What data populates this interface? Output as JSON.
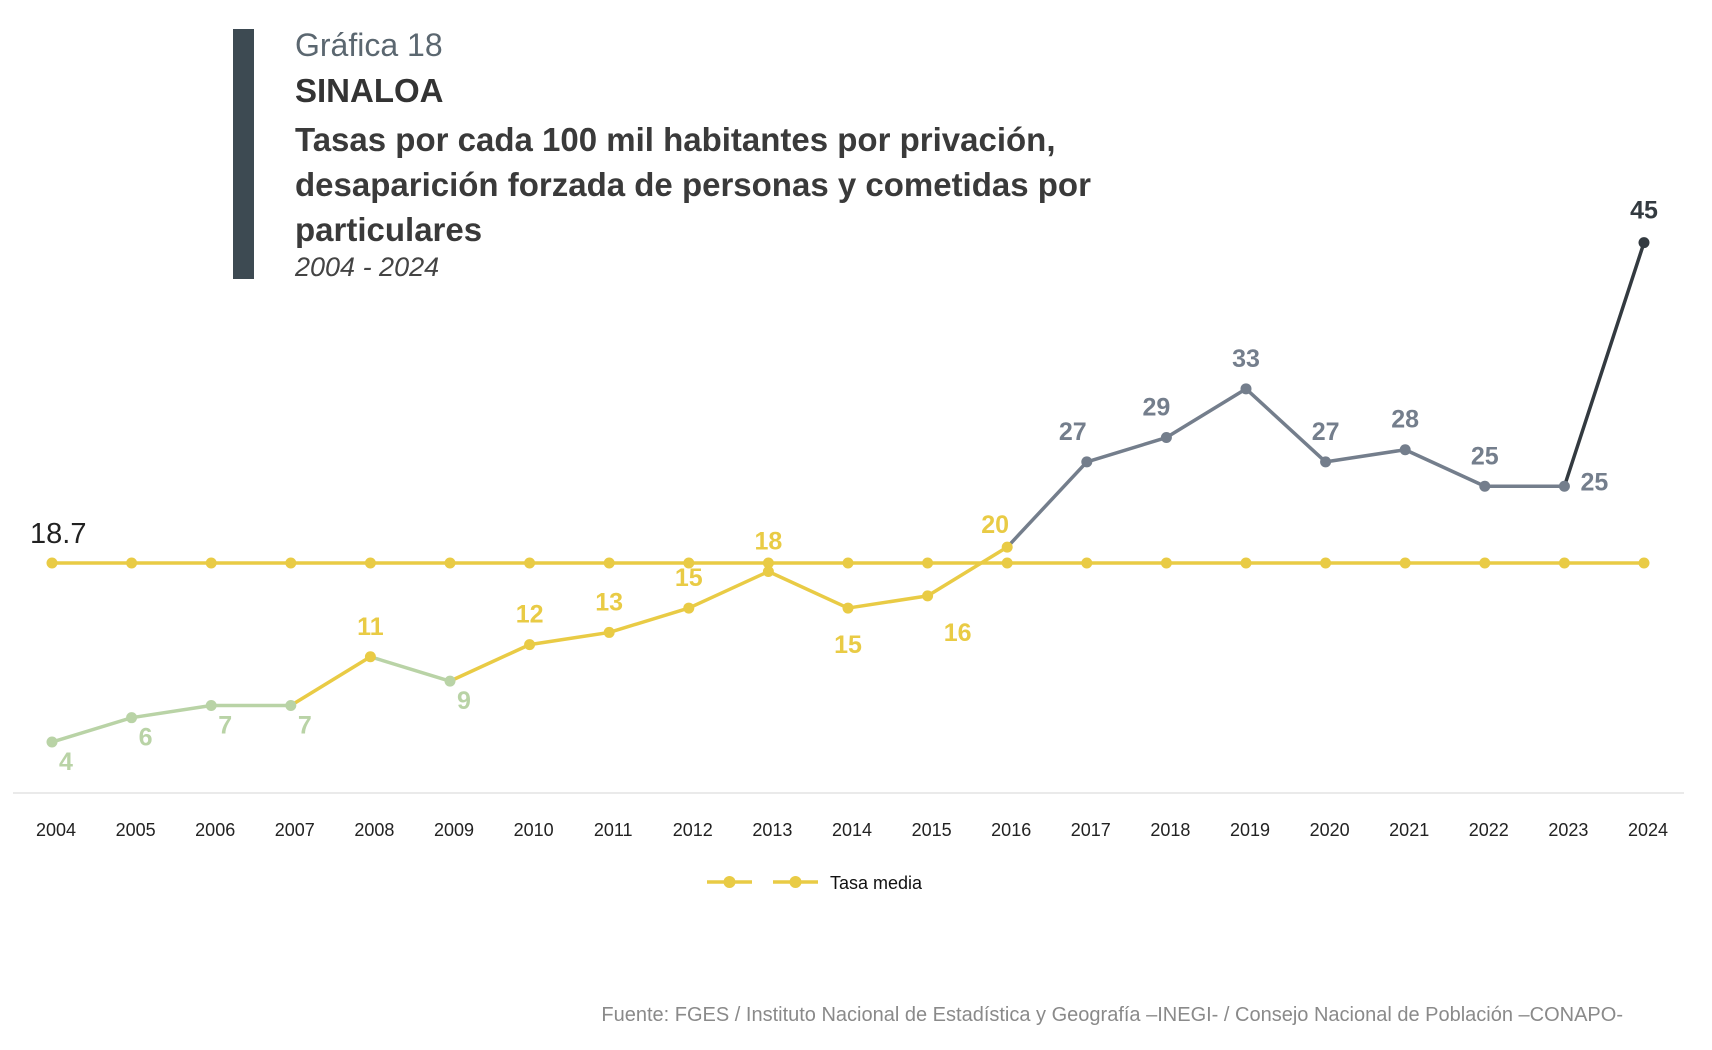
{
  "header": {
    "chart_number": "Gráfica 18",
    "state": "SINALOA",
    "title": "Tasas por cada 100 mil habitantes por privación, desaparición forzada de personas y cometidas por particulares",
    "period": "2004 - 2024"
  },
  "source": "Fuente: FGES / Instituto Nacional de Estadística y Geografía –INEGI- / Consejo Nacional de Población –CONAPO-",
  "chart_data": {
    "type": "line",
    "title": "Tasas por cada 100 mil habitantes por privación, desaparición forzada de personas y cometidas por particulares",
    "xlabel": "",
    "ylabel": "",
    "grid": false,
    "legend_placement": "bottom-center",
    "categories": [
      "2004",
      "2005",
      "2006",
      "2007",
      "2008",
      "2009",
      "2010",
      "2011",
      "2012",
      "2013",
      "2014",
      "2015",
      "2016",
      "2017",
      "2018",
      "2019",
      "2020",
      "2021",
      "2022",
      "2023",
      "2024"
    ],
    "series": [
      {
        "values": [
          4,
          6,
          7,
          7,
          11,
          9,
          12,
          13,
          15,
          18,
          15,
          16,
          20,
          27,
          29,
          33,
          27,
          28,
          25,
          25,
          45
        ],
        "labels": [
          "4",
          "6",
          "7",
          "7",
          "11",
          "9",
          "12",
          "13",
          "15",
          "18",
          "15",
          "16",
          "20",
          "27",
          "29",
          "33",
          "27",
          "28",
          "25",
          "25",
          "45"
        ],
        "point_colors": [
          "#b9d3a6",
          "#b9d3a6",
          "#b9d3a6",
          "#b9d3a6",
          "#e9cb45",
          "#b9d3a6",
          "#e9cb45",
          "#e9cb45",
          "#e9cb45",
          "#e9cb45",
          "#e9cb45",
          "#e9cb45",
          "#e9cb45",
          "#747e8c",
          "#747e8c",
          "#747e8c",
          "#747e8c",
          "#747e8c",
          "#747e8c",
          "#747e8c",
          "#333a40"
        ]
      },
      {
        "name": "Tasa media",
        "values": [
          18.7,
          18.7,
          18.7,
          18.7,
          18.7,
          18.7,
          18.7,
          18.7,
          18.7,
          18.7,
          18.7,
          18.7,
          18.7,
          18.7,
          18.7,
          18.7,
          18.7,
          18.7,
          18.7,
          18.7,
          18.7
        ],
        "color": "#e9cb45",
        "value_label": "18.7"
      }
    ],
    "legend": [
      {
        "label": "",
        "color": "#e9cb45"
      },
      {
        "label": "Tasa media",
        "color": "#e9cb45"
      }
    ]
  }
}
